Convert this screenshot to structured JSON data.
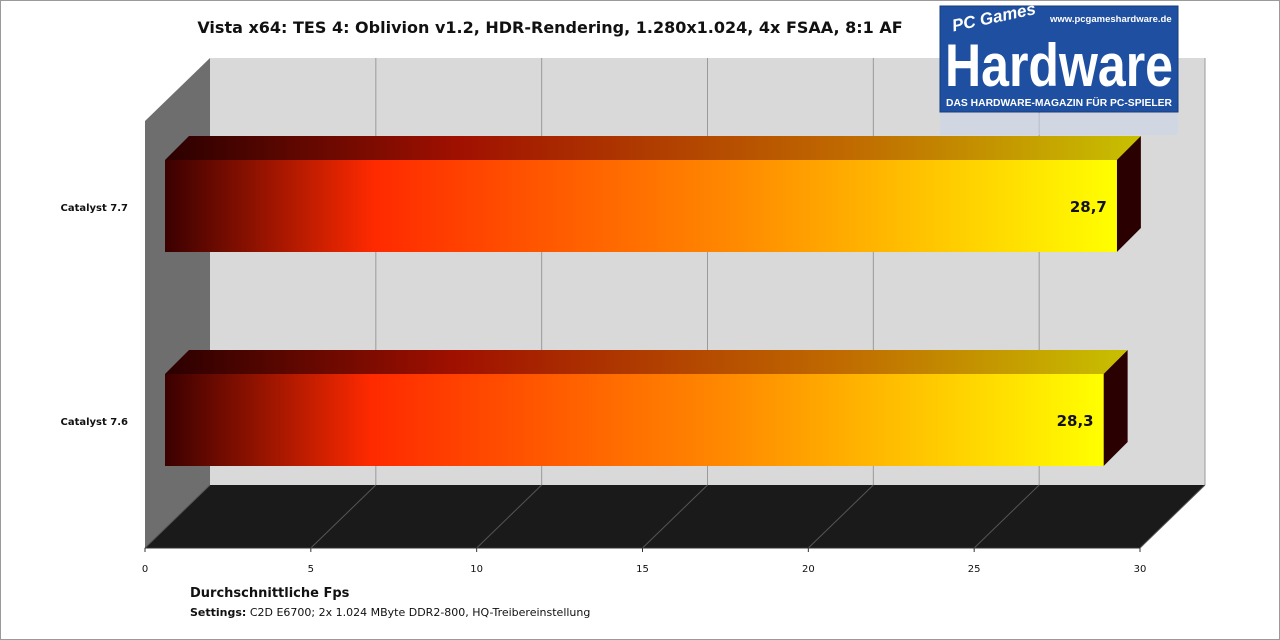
{
  "chart_data": {
    "type": "bar",
    "orientation": "horizontal",
    "title": "Vista x64: TES 4: Oblivion v1.2, HDR-Rendering, 1.280x1.024, 4x FSAA, 8:1 AF",
    "categories": [
      "Catalyst 7.7",
      "Catalyst 7.6"
    ],
    "values": [
      28.7,
      28.3
    ],
    "value_labels": [
      "28,7",
      "28,3"
    ],
    "xlabel": "Durchschnittliche Fps",
    "xlim": [
      0,
      30
    ],
    "xticks": [
      0,
      5,
      10,
      15,
      20,
      25,
      30
    ],
    "grid": true,
    "legend": "none"
  },
  "footer": {
    "settings_label": "Settings:",
    "settings_text": " C2D E6700; 2x 1.024 MByte DDR2-800, HQ-Treibereinstellung"
  },
  "logo": {
    "brand_small": "PC Games",
    "brand_big": "Hardware",
    "url": "www.pcgameshardware.de",
    "tagline": "DAS HARDWARE-MAGAZIN FÜR PC-SPIELER"
  },
  "colors": {
    "bar_dark": "#3a0000",
    "bar_red": "#ff2a00",
    "bar_orange": "#ff8a00",
    "bar_yellow": "#ffff00",
    "wall": "#d9d9d9",
    "left_wall": "#6e6e6e",
    "floor": "#1a1a1a",
    "logo_blue": "#1e4fa0"
  }
}
